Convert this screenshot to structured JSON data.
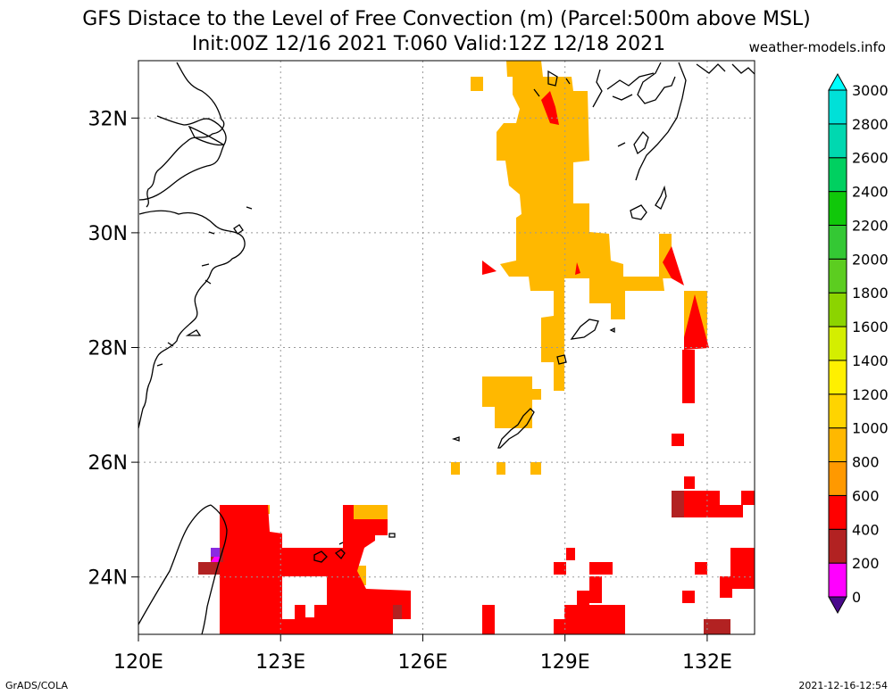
{
  "title_line1": "GFS Distace to the Level of Free Convection (m) (Parcel:500m above MSL)",
  "title_line2": "Init:00Z 12/16 2021 T:060 Valid:12Z 12/18 2021",
  "site": "weather-models.info",
  "footer_left": "GrADS/COLA",
  "footer_right": "2021-12-16-12:54",
  "x_ticks": [
    {
      "lon": 120,
      "label": "120E"
    },
    {
      "lon": 123,
      "label": "123E"
    },
    {
      "lon": 126,
      "label": "126E"
    },
    {
      "lon": 129,
      "label": "129E"
    },
    {
      "lon": 132,
      "label": "132E"
    }
  ],
  "y_ticks": [
    {
      "lat": 24,
      "label": "24N"
    },
    {
      "lat": 26,
      "label": "26N"
    },
    {
      "lat": 28,
      "label": "28N"
    },
    {
      "lat": 30,
      "label": "30N"
    },
    {
      "lat": 32,
      "label": "32N"
    }
  ],
  "map_extent": {
    "lon": [
      120,
      133
    ],
    "lat": [
      23,
      33
    ]
  },
  "grid": true,
  "colorbar": {
    "levels": [
      "0",
      "200",
      "400",
      "600",
      "800",
      "1000",
      "1200",
      "1400",
      "1600",
      "1800",
      "2000",
      "2200",
      "2400",
      "2600",
      "2800",
      "3000"
    ],
    "colors": [
      "#4a0a8c",
      "#ff00ff",
      "#b22222",
      "#ff0000",
      "#ff9900",
      "#ffb800",
      "#ffd400",
      "#fff000",
      "#d4ee00",
      "#8cd400",
      "#5ccd20",
      "#34c834",
      "#10c80a",
      "#00d060",
      "#00d8b0",
      "#00e0d8",
      "#00ffff"
    ]
  },
  "chart_data": {
    "type": "heatmap",
    "units": "m",
    "cells": [
      {
        "lon": 128.0,
        "lat": 32.8,
        "v": 1000
      },
      {
        "lon": 128.3,
        "lat": 32.5,
        "v": 1000
      },
      {
        "lon": 128.6,
        "lat": 32.2,
        "v": 700
      },
      {
        "lon": 128.9,
        "lat": 31.9,
        "v": 1000
      },
      {
        "lon": 127.6,
        "lat": 31.6,
        "v": 1000
      },
      {
        "lon": 127.9,
        "lat": 31.3,
        "v": 1000
      },
      {
        "lon": 128.2,
        "lat": 31.0,
        "v": 1000
      },
      {
        "lon": 128.5,
        "lat": 30.7,
        "v": 1000
      },
      {
        "lon": 128.8,
        "lat": 30.4,
        "v": 1000
      },
      {
        "lon": 129.1,
        "lat": 30.1,
        "v": 1000
      },
      {
        "lon": 129.4,
        "lat": 29.8,
        "v": 1000
      },
      {
        "lon": 129.7,
        "lat": 29.5,
        "v": 1000
      },
      {
        "lon": 130.4,
        "lat": 29.2,
        "v": 1000
      },
      {
        "lon": 131.4,
        "lat": 29.3,
        "v": 500
      },
      {
        "lon": 131.7,
        "lat": 28.3,
        "v": 500
      },
      {
        "lon": 128.8,
        "lat": 28.6,
        "v": 1000
      },
      {
        "lon": 127.9,
        "lat": 27.1,
        "v": 1100
      },
      {
        "lon": 128.9,
        "lat": 27.7,
        "v": 1000
      },
      {
        "lon": 121.9,
        "lat": 24.5,
        "v": 500
      },
      {
        "lon": 122.4,
        "lat": 24.0,
        "v": 500
      },
      {
        "lon": 124.5,
        "lat": 24.2,
        "v": 500
      },
      {
        "lon": 124.8,
        "lat": 23.5,
        "v": 500
      },
      {
        "lon": 121.5,
        "lat": 24.2,
        "v": 300
      },
      {
        "lon": 121.5,
        "lat": 24.3,
        "v": 100
      },
      {
        "lon": 131.7,
        "lat": 24.4,
        "v": 500
      },
      {
        "lon": 132.9,
        "lat": 24.0,
        "v": 500
      },
      {
        "lon": 129.9,
        "lat": 23.3,
        "v": 500
      },
      {
        "lon": 132.0,
        "lat": 23.1,
        "v": 300
      }
    ]
  }
}
